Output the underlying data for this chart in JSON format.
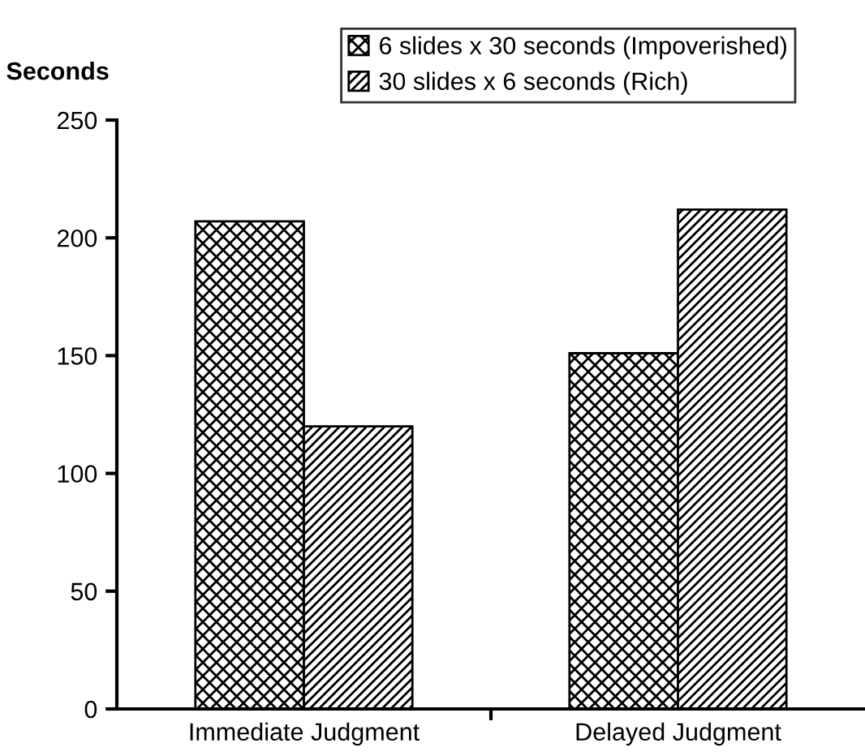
{
  "chart_data": {
    "type": "bar",
    "ylabel": "Seconds",
    "categories": [
      "Immediate Judgment",
      "Delayed Judgment"
    ],
    "series": [
      {
        "name": "6 slides x 30 seconds (Impoverished)",
        "color": "#000000",
        "values": [
          207,
          151
        ]
      },
      {
        "name": "30 slides x 6 seconds (Rich)",
        "color": "#000000",
        "values": [
          120,
          212
        ]
      }
    ],
    "ylim": [
      0,
      250
    ],
    "yticks": [
      0,
      50,
      100,
      150,
      200,
      250
    ],
    "grid": false,
    "legend": "top"
  }
}
